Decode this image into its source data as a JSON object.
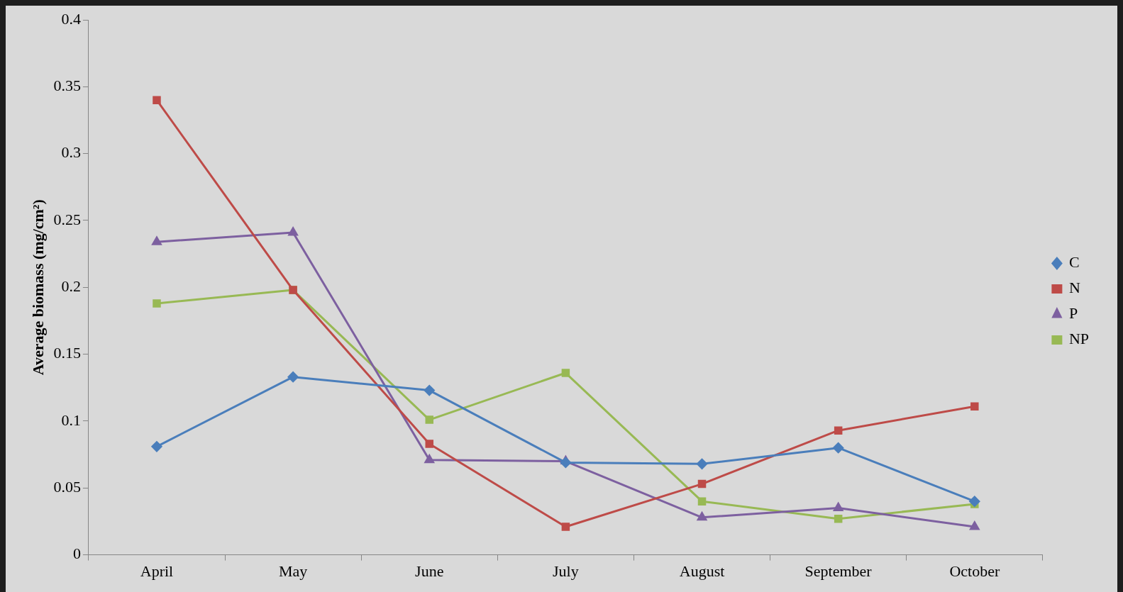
{
  "chart_data": {
    "type": "line",
    "ylabel": "Average biomass (mg/cm²)",
    "categories": [
      "April",
      "May",
      "June",
      "July",
      "August",
      "September",
      "October"
    ],
    "series": [
      {
        "name": "C",
        "color": "#4a7ebb",
        "marker": "diamond",
        "values": [
          0.081,
          0.133,
          0.123,
          0.069,
          0.068,
          0.08,
          0.04
        ]
      },
      {
        "name": "N",
        "color": "#be4b48",
        "marker": "square",
        "values": [
          0.34,
          0.198,
          0.083,
          0.021,
          0.053,
          0.093,
          0.111
        ]
      },
      {
        "name": "P",
        "color": "#7d60a0",
        "marker": "triangle",
        "values": [
          0.234,
          0.241,
          0.071,
          0.07,
          0.028,
          0.035,
          0.021
        ]
      },
      {
        "name": "NP",
        "color": "#98b954",
        "marker": "square",
        "values": [
          0.188,
          0.198,
          0.101,
          0.136,
          0.04,
          0.027,
          0.038
        ]
      }
    ],
    "ylim": [
      0,
      0.4
    ],
    "yticks": [
      0,
      0.05,
      0.1,
      0.15,
      0.2,
      0.25,
      0.3,
      0.35,
      0.4
    ],
    "grid": false,
    "legend": "right",
    "line_style": "solid"
  }
}
